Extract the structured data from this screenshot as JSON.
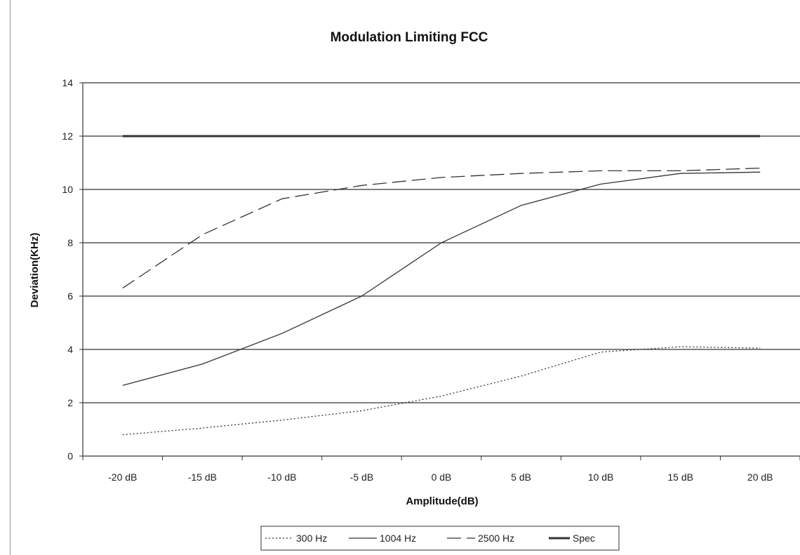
{
  "chart_data": {
    "type": "line",
    "title": "Modulation Limiting FCC",
    "xlabel": "Amplitude(dB)",
    "ylabel": "Deviation(KHz)",
    "categories": [
      "-20 dB",
      "-15 dB",
      "-10 dB",
      "-5 dB",
      "0 dB",
      "5 dB",
      "10 dB",
      "15 dB",
      "20 dB"
    ],
    "ylim": [
      0,
      14
    ],
    "yticks": [
      "0",
      "2",
      "4",
      "6",
      "8",
      "10",
      "12",
      "14"
    ],
    "grid": "horizontal",
    "legend_position": "bottom",
    "series": [
      {
        "name": "300 Hz",
        "style": "dotted",
        "color": "#333333",
        "values": [
          0.8,
          1.05,
          1.35,
          1.7,
          2.25,
          3.0,
          3.9,
          4.1,
          4.05
        ]
      },
      {
        "name": "1004 Hz",
        "style": "solid",
        "color": "#333333",
        "values": [
          2.65,
          3.45,
          4.6,
          6.0,
          8.0,
          9.4,
          10.2,
          10.6,
          10.65
        ]
      },
      {
        "name": "2500 Hz",
        "style": "dashed",
        "color": "#333333",
        "values": [
          6.3,
          8.3,
          9.65,
          10.15,
          10.45,
          10.6,
          10.7,
          10.7,
          10.8
        ]
      },
      {
        "name": "Spec",
        "style": "thick",
        "color": "#333333",
        "values": [
          12,
          12,
          12,
          12,
          12,
          12,
          12,
          12,
          12
        ]
      }
    ]
  }
}
